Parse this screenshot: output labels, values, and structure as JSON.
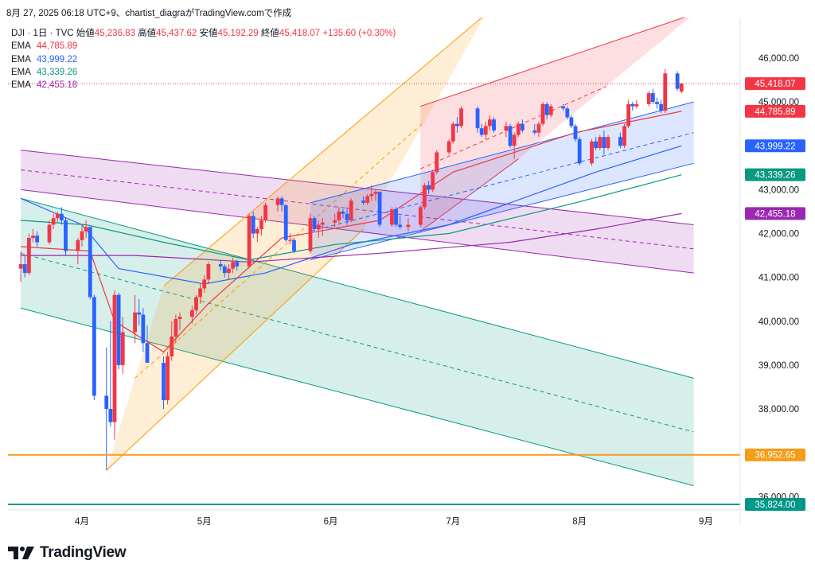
{
  "header": {
    "text": "8月 27, 2025 06:18 UTC+9、chartist_diagraがTradingView.comで作成"
  },
  "ohlc": {
    "symbol": "DJI · 1日 · TVC",
    "open_label": "始値",
    "open": "45,236.83",
    "high_label": "高値",
    "high": "45,437.62",
    "low_label": "安値",
    "low": "45,192.29",
    "close_label": "終値",
    "close": "45,418.07",
    "change": "+135.60 (+0.30%)",
    "color": "#f23645"
  },
  "ema_legend": [
    {
      "label": "EMA",
      "value": "44,785.89",
      "color": "#f23645"
    },
    {
      "label": "EMA",
      "value": "43,999.22",
      "color": "#2962ff"
    },
    {
      "label": "EMA",
      "value": "43,339.26",
      "color": "#089981"
    },
    {
      "label": "EMA",
      "value": "42,455.18",
      "color": "#9c27b0"
    }
  ],
  "brand": {
    "name": "TradingView"
  },
  "chart_data": {
    "type": "candlestick",
    "symbol": "DJI",
    "interval": "1日",
    "x_tick_labels": [
      "4月",
      "5月",
      "6月",
      "7月",
      "8月",
      "9月"
    ],
    "y_tick_labels": [
      "46,000.00",
      "45,000.00",
      "43,000.00",
      "42,000.00",
      "41,000.00",
      "40,000.00",
      "39,000.00",
      "38,000.00",
      "36,000.00"
    ],
    "ylim": [
      35600,
      47000
    ],
    "grid": false,
    "colors": {
      "up": "#f23645",
      "down": "#2962ff"
    },
    "candles": [
      [
        "2025-03-17",
        41200,
        41600,
        40900,
        41300
      ],
      [
        "2025-03-18",
        41300,
        41500,
        41000,
        41100
      ],
      [
        "2025-03-19",
        41100,
        42000,
        41050,
        41900
      ],
      [
        "2025-03-20",
        41900,
        42100,
        41800,
        41950
      ],
      [
        "2025-03-21",
        41950,
        42050,
        41700,
        41800
      ],
      [
        "2025-03-24",
        41800,
        42300,
        41750,
        42200
      ],
      [
        "2025-03-25",
        42200,
        42450,
        42100,
        42350
      ],
      [
        "2025-03-26",
        42350,
        42500,
        42250,
        42450
      ],
      [
        "2025-03-27",
        42450,
        42600,
        42200,
        42300
      ],
      [
        "2025-03-28",
        42300,
        42350,
        41500,
        41600
      ],
      [
        "2025-03-31",
        41600,
        41900,
        41300,
        41850
      ],
      [
        "2025-04-01",
        41850,
        42200,
        41700,
        42050
      ],
      [
        "2025-04-02",
        42050,
        42300,
        41900,
        42150
      ],
      [
        "2025-04-03",
        42150,
        42150,
        40500,
        40550
      ],
      [
        "2025-04-04",
        40550,
        40600,
        38200,
        38300
      ],
      [
        "2025-04-07",
        38300,
        39400,
        36600,
        38000
      ],
      [
        "2025-04-08",
        38000,
        40000,
        37600,
        37700
      ],
      [
        "2025-04-09",
        37700,
        40700,
        37300,
        40600
      ],
      [
        "2025-04-10",
        40600,
        40650,
        38900,
        39000
      ],
      [
        "2025-04-11",
        39000,
        40100,
        38800,
        39750
      ],
      [
        "2025-04-14",
        39750,
        40600,
        39500,
        40200
      ],
      [
        "2025-04-15",
        40200,
        40500,
        39900,
        40150
      ],
      [
        "2025-04-16",
        40150,
        40300,
        39300,
        39500
      ],
      [
        "2025-04-17",
        39500,
        39900,
        39100,
        39050
      ],
      [
        "2025-04-21",
        39050,
        39200,
        38000,
        38200
      ],
      [
        "2025-04-22",
        38200,
        39300,
        38100,
        39200
      ],
      [
        "2025-04-23",
        39200,
        40000,
        39100,
        39650
      ],
      [
        "2025-04-24",
        39650,
        40150,
        39500,
        40050
      ],
      [
        "2025-04-25",
        40050,
        40200,
        39800,
        40100
      ],
      [
        "2025-04-28",
        40100,
        40350,
        39950,
        40250
      ],
      [
        "2025-04-29",
        40250,
        40600,
        40150,
        40550
      ],
      [
        "2025-04-30",
        40550,
        40850,
        40400,
        40750
      ],
      [
        "2025-05-01",
        40750,
        41050,
        40650,
        40950
      ],
      [
        "2025-05-02",
        40950,
        41350,
        40850,
        41300
      ],
      [
        "2025-05-05",
        41300,
        41400,
        41150,
        41250
      ],
      [
        "2025-05-06",
        41250,
        41300,
        41000,
        41100
      ],
      [
        "2025-05-07",
        41100,
        41300,
        40950,
        41200
      ],
      [
        "2025-05-08",
        41200,
        41450,
        41100,
        41350
      ],
      [
        "2025-05-09",
        41350,
        41400,
        41150,
        41250
      ],
      [
        "2025-05-12",
        41250,
        42450,
        41200,
        42400
      ],
      [
        "2025-05-13",
        42400,
        42500,
        41900,
        42000
      ],
      [
        "2025-05-14",
        42000,
        42150,
        41800,
        42100
      ],
      [
        "2025-05-15",
        42100,
        42400,
        41950,
        42300
      ],
      [
        "2025-05-16",
        42300,
        42700,
        42250,
        42650
      ],
      [
        "2025-05-19",
        42650,
        42850,
        42500,
        42800
      ],
      [
        "2025-05-20",
        42800,
        42850,
        42500,
        42650
      ],
      [
        "2025-05-21",
        42650,
        42650,
        41800,
        41850
      ],
      [
        "2025-05-22",
        41850,
        42000,
        41750,
        41850
      ],
      [
        "2025-05-23",
        41850,
        41900,
        41550,
        41600
      ],
      [
        "2025-05-27",
        41600,
        42450,
        41550,
        42350
      ],
      [
        "2025-05-28",
        42350,
        42400,
        42050,
        42100
      ],
      [
        "2025-05-29",
        42100,
        42300,
        41900,
        42200
      ],
      [
        "2025-05-30",
        42200,
        42350,
        41950,
        42250
      ],
      [
        "2025-06-02",
        42250,
        42450,
        42150,
        42300
      ],
      [
        "2025-06-03",
        42300,
        42600,
        42250,
        42500
      ],
      [
        "2025-06-04",
        42500,
        42550,
        42350,
        42450
      ],
      [
        "2025-06-05",
        42450,
        42600,
        42200,
        42300
      ],
      [
        "2025-06-06",
        42300,
        42800,
        42250,
        42750
      ],
      [
        "2025-06-09",
        42750,
        42850,
        42650,
        42700
      ],
      [
        "2025-06-10",
        42700,
        42900,
        42650,
        42850
      ],
      [
        "2025-06-11",
        42850,
        43100,
        42750,
        42900
      ],
      [
        "2025-06-12",
        42900,
        43000,
        42750,
        42950
      ],
      [
        "2025-06-13",
        42950,
        42950,
        42150,
        42200
      ],
      [
        "2025-06-16",
        42200,
        42600,
        42150,
        42550
      ],
      [
        "2025-06-17",
        42550,
        42600,
        42150,
        42200
      ],
      [
        "2025-06-18",
        42200,
        42400,
        42100,
        42150
      ],
      [
        "2025-06-20",
        42150,
        42350,
        42050,
        42200
      ],
      [
        "2025-06-23",
        42200,
        42650,
        42150,
        42600
      ],
      [
        "2025-06-24",
        42600,
        43150,
        42550,
        43100
      ],
      [
        "2025-06-25",
        43100,
        43200,
        42900,
        43000
      ],
      [
        "2025-06-26",
        43000,
        43450,
        42950,
        43400
      ],
      [
        "2025-06-27",
        43400,
        43900,
        43350,
        43850
      ],
      [
        "2025-06-30",
        43850,
        44150,
        43800,
        44100
      ],
      [
        "2025-07-01",
        44100,
        44550,
        44050,
        44500
      ],
      [
        "2025-07-02",
        44500,
        44650,
        44300,
        44450
      ],
      [
        "2025-07-03",
        44450,
        44900,
        44400,
        44850
      ],
      [
        "2025-07-07",
        44850,
        44900,
        44300,
        44400
      ],
      [
        "2025-07-08",
        44400,
        44500,
        44200,
        44250
      ],
      [
        "2025-07-09",
        44250,
        44550,
        44150,
        44450
      ],
      [
        "2025-07-10",
        44450,
        44700,
        44350,
        44600
      ],
      [
        "2025-07-11",
        44600,
        44650,
        44300,
        44350
      ],
      [
        "2025-07-14",
        44350,
        44550,
        44200,
        44450
      ],
      [
        "2025-07-15",
        44450,
        44500,
        43950,
        44000
      ],
      [
        "2025-07-16",
        44000,
        44300,
        43700,
        44250
      ],
      [
        "2025-07-17",
        44250,
        44550,
        44200,
        44500
      ],
      [
        "2025-07-18",
        44500,
        44600,
        44300,
        44350
      ],
      [
        "2025-07-21",
        44350,
        44500,
        44250,
        44300
      ],
      [
        "2025-07-22",
        44300,
        44550,
        44200,
        44500
      ],
      [
        "2025-07-23",
        44500,
        45000,
        44450,
        44950
      ],
      [
        "2025-07-24",
        44950,
        45000,
        44600,
        44700
      ],
      [
        "2025-07-25",
        44700,
        44950,
        44650,
        44900
      ],
      [
        "2025-07-28",
        44900,
        44950,
        44800,
        44850
      ],
      [
        "2025-07-29",
        44850,
        44900,
        44600,
        44650
      ],
      [
        "2025-07-30",
        44650,
        44700,
        44400,
        44450
      ],
      [
        "2025-07-31",
        44450,
        44500,
        44100,
        44150
      ],
      [
        "2025-08-01",
        44150,
        44200,
        43550,
        43600
      ],
      [
        "2025-08-04",
        43600,
        44150,
        43550,
        44100
      ],
      [
        "2025-08-05",
        44100,
        44200,
        43900,
        43950
      ],
      [
        "2025-08-06",
        43950,
        44250,
        43900,
        44200
      ],
      [
        "2025-08-07",
        44200,
        44350,
        43800,
        43950
      ],
      [
        "2025-08-08",
        43950,
        44250,
        43900,
        44200
      ],
      [
        "2025-08-11",
        44200,
        44300,
        43950,
        44000
      ],
      [
        "2025-08-12",
        44000,
        44500,
        43950,
        44450
      ],
      [
        "2025-08-13",
        44450,
        45050,
        44400,
        44950
      ],
      [
        "2025-08-14",
        44950,
        45000,
        44800,
        44900
      ],
      [
        "2025-08-15",
        44900,
        45050,
        44850,
        44950
      ],
      [
        "2025-08-18",
        44950,
        45250,
        44900,
        45200
      ],
      [
        "2025-08-19",
        45200,
        45300,
        44950,
        45000
      ],
      [
        "2025-08-20",
        45000,
        45100,
        44850,
        44950
      ],
      [
        "2025-08-21",
        44950,
        45050,
        44750,
        44800
      ],
      [
        "2025-08-22",
        44800,
        45750,
        44750,
        45650
      ],
      [
        "2025-08-25",
        45650,
        45700,
        45250,
        45300
      ],
      [
        "2025-08-26",
        45236.83,
        45437.62,
        45192.29,
        45418.07
      ]
    ],
    "ema_lines": [
      {
        "name": "EMA",
        "value": 44785.89,
        "color": "#f23645",
        "points": [
          [
            "2025-03-17",
            41700
          ],
          [
            "2025-04-03",
            41600
          ],
          [
            "2025-04-09",
            40000
          ],
          [
            "2025-04-21",
            39300
          ],
          [
            "2025-05-02",
            40400
          ],
          [
            "2025-05-20",
            41900
          ],
          [
            "2025-06-13",
            42300
          ],
          [
            "2025-07-01",
            43400
          ],
          [
            "2025-07-31",
            44300
          ],
          [
            "2025-08-26",
            44785.89
          ]
        ]
      },
      {
        "name": "EMA",
        "value": 43999.22,
        "color": "#2962ff",
        "points": [
          [
            "2025-03-17",
            42800
          ],
          [
            "2025-04-01",
            42200
          ],
          [
            "2025-04-10",
            41200
          ],
          [
            "2025-05-01",
            40850
          ],
          [
            "2025-05-16",
            41100
          ],
          [
            "2025-06-06",
            41750
          ],
          [
            "2025-06-30",
            42200
          ],
          [
            "2025-07-15",
            42700
          ],
          [
            "2025-08-05",
            43400
          ],
          [
            "2025-08-26",
            43999.22
          ]
        ]
      },
      {
        "name": "EMA",
        "value": 43339.26,
        "color": "#089981",
        "points": [
          [
            "2025-03-17",
            42300
          ],
          [
            "2025-04-02",
            42200
          ],
          [
            "2025-04-21",
            41800
          ],
          [
            "2025-05-12",
            41400
          ],
          [
            "2025-06-02",
            41750
          ],
          [
            "2025-06-30",
            42000
          ],
          [
            "2025-07-31",
            42700
          ],
          [
            "2025-08-26",
            43339.26
          ]
        ]
      },
      {
        "name": "EMA",
        "value": 42455.18,
        "color": "#9c27b0",
        "points": [
          [
            "2025-03-17",
            41500
          ],
          [
            "2025-04-14",
            41500
          ],
          [
            "2025-05-12",
            41350
          ],
          [
            "2025-06-13",
            41550
          ],
          [
            "2025-07-15",
            41800
          ],
          [
            "2025-08-05",
            42100
          ],
          [
            "2025-08-26",
            42455.18
          ]
        ]
      }
    ],
    "channels": [
      {
        "color": "#9c27b0",
        "upper": [
          [
            "2025-03-17",
            43900
          ],
          [
            "2025-08-29",
            42200
          ]
        ],
        "lower": [
          [
            "2025-03-17",
            43000
          ],
          [
            "2025-08-29",
            41100
          ]
        ]
      },
      {
        "color": "#089981",
        "upper": [
          [
            "2025-03-17",
            42800
          ],
          [
            "2025-08-29",
            38700
          ]
        ],
        "lower": [
          [
            "2025-03-17",
            40300
          ],
          [
            "2025-08-29",
            36250
          ]
        ]
      },
      {
        "color": "#ff9800",
        "upper": [
          [
            "2025-04-21",
            40800
          ],
          [
            "2025-07-09",
            47000
          ]
        ],
        "lower": [
          [
            "2025-04-07",
            36600
          ],
          [
            "2025-06-09",
            42100
          ]
        ]
      },
      {
        "color": "#f23645",
        "upper": [
          [
            "2025-06-23",
            44900
          ],
          [
            "2025-08-29",
            47000
          ]
        ],
        "lower": [
          [
            "2025-06-23",
            42050
          ],
          [
            "2025-07-17",
            43700
          ]
        ]
      },
      {
        "color": "#2962ff",
        "upper": [
          [
            "2025-05-27",
            42700
          ],
          [
            "2025-08-29",
            45000
          ]
        ],
        "lower": [
          [
            "2025-05-27",
            41400
          ],
          [
            "2025-08-29",
            43600
          ]
        ]
      }
    ],
    "horizontal_levels": [
      {
        "value": 36952.65,
        "label": "36,952.65",
        "color": "#f59c1a"
      },
      {
        "value": 35824.0,
        "label": "35,824.00",
        "color": "#009688"
      }
    ],
    "price_tags": [
      {
        "label": "45,418.07",
        "value": 45418.07,
        "color": "#f23645"
      },
      {
        "label": "44,785.89",
        "value": 44785.89,
        "color": "#f23645"
      },
      {
        "label": "43,999.22",
        "value": 43999.22,
        "color": "#2962ff"
      },
      {
        "label": "43,339.26",
        "value": 43339.26,
        "color": "#089981"
      },
      {
        "label": "42,455.18",
        "value": 42455.18,
        "color": "#9c27b0"
      },
      {
        "label": "36,952.65",
        "value": 36952.65,
        "color": "#f59c1a"
      },
      {
        "label": "35,824.00",
        "value": 35824.0,
        "color": "#009688"
      }
    ]
  }
}
